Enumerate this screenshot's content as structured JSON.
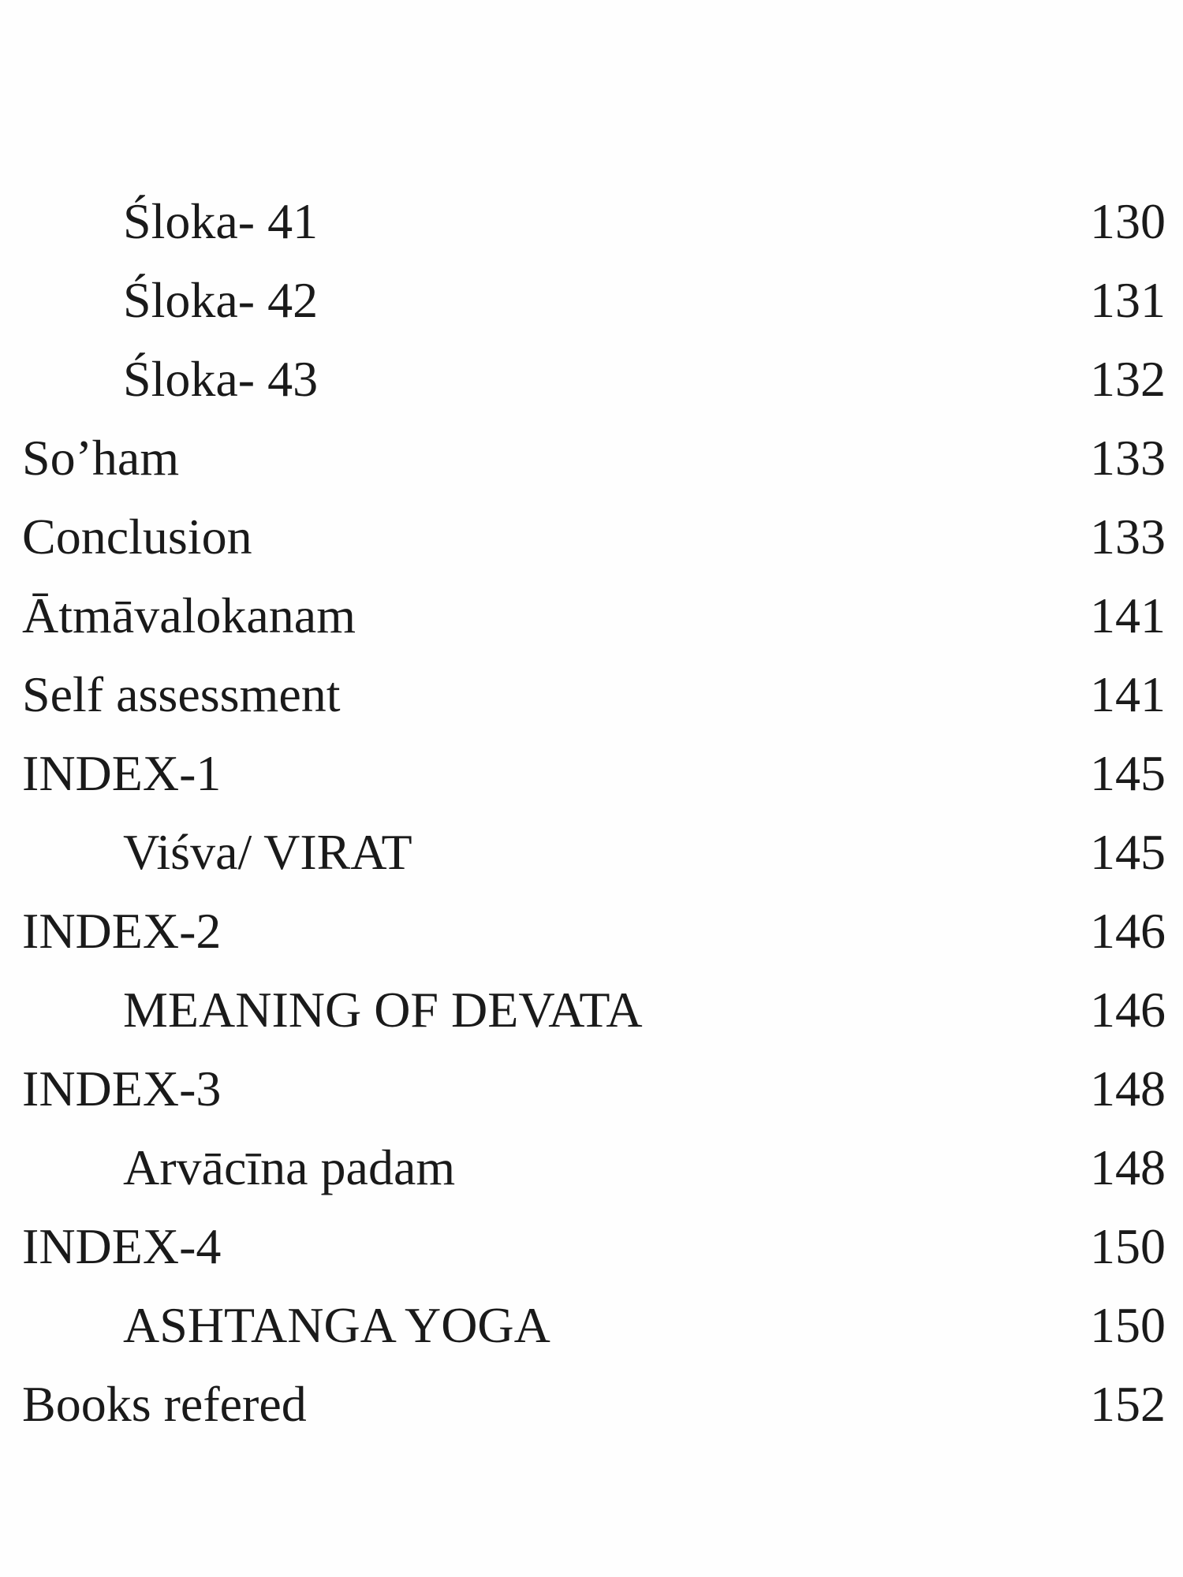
{
  "toc": {
    "entries": [
      {
        "title": "Śloka- 41",
        "page": "130",
        "level": 2
      },
      {
        "title": "Śloka- 42",
        "page": "131",
        "level": 2
      },
      {
        "title": "Śloka- 43",
        "page": "132",
        "level": 2
      },
      {
        "title": "So’ham",
        "page": "133",
        "level": 1
      },
      {
        "title": "Conclusion",
        "page": "133",
        "level": 1
      },
      {
        "title": "Ātmāvalokanam",
        "page": "141",
        "level": 1
      },
      {
        "title": "Self assessment",
        "page": "141",
        "level": 1
      },
      {
        "title": "INDEX-1",
        "page": "145",
        "level": 1
      },
      {
        "title": "Viśva/ VIRAT",
        "page": "145",
        "level": 2
      },
      {
        "title": "INDEX-2",
        "page": "146",
        "level": 1
      },
      {
        "title": "MEANING OF DEVATA",
        "page": "146",
        "level": 2
      },
      {
        "title": "INDEX-3",
        "page": "148",
        "level": 1
      },
      {
        "title": "Arvācīna padam",
        "page": "148",
        "level": 2
      },
      {
        "title": "INDEX-4",
        "page": "150",
        "level": 1
      },
      {
        "title": "ASHTANGA YOGA",
        "page": "150",
        "level": 2
      },
      {
        "title": "Books refered",
        "page": "152",
        "level": 1
      }
    ]
  }
}
